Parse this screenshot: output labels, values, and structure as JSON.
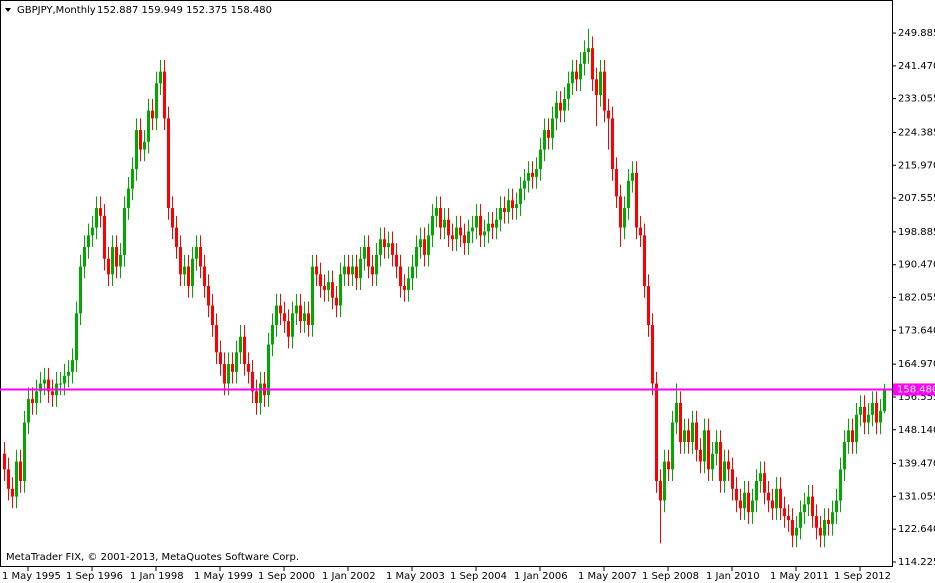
{
  "chart_data": {
    "type": "candlestick",
    "title": "GBPJPY,Monthly",
    "info_line": "152.887 159.949 152.375 158.480",
    "footer": "MetaTrader FIX, © 2001-2013, MetaQuotes Software Corp.",
    "up_color": "#00a800",
    "down_color": "#ff0000",
    "price_line": {
      "value": 158.48,
      "label": "158.480",
      "color": "#ff00ff"
    },
    "ylim": [
      113.2,
      258.36
    ],
    "yticks": [
      249.885,
      {
        "value": 241.47,
        "label": "241.470"
      },
      233.055,
      224.385,
      {
        "value": 215.97,
        "label": "215.970"
      },
      207.555,
      198.885,
      {
        "value": 190.47,
        "label": "190.470"
      },
      182.055,
      {
        "value": 173.64,
        "label": "173.640"
      },
      {
        "value": 164.97,
        "label": "164.970"
      },
      156.555,
      {
        "value": 148.14,
        "label": "148.140"
      },
      {
        "value": 139.47,
        "label": "139.470"
      },
      131.055,
      {
        "value": 122.64,
        "label": "122.640"
      },
      114.225
    ],
    "categories": [
      null,
      null,
      null,
      null,
      null,
      null,
      "1 May 1995",
      null,
      null,
      null,
      null,
      null,
      null,
      null,
      null,
      null,
      null,
      null,
      null,
      null,
      null,
      null,
      "1 Sep 1996",
      null,
      null,
      null,
      null,
      null,
      null,
      null,
      null,
      null,
      null,
      null,
      null,
      null,
      null,
      null,
      "1 Jan 1998",
      null,
      null,
      null,
      null,
      null,
      null,
      null,
      null,
      null,
      null,
      null,
      null,
      null,
      null,
      null,
      "1 May 1999",
      null,
      null,
      null,
      null,
      null,
      null,
      null,
      null,
      null,
      null,
      null,
      null,
      null,
      null,
      null,
      "1 Sep 2000",
      null,
      null,
      null,
      null,
      null,
      null,
      null,
      null,
      null,
      null,
      null,
      null,
      null,
      null,
      null,
      "1 Jan 2002",
      null,
      null,
      null,
      null,
      null,
      null,
      null,
      null,
      null,
      null,
      null,
      null,
      null,
      null,
      null,
      "1 May 2003",
      null,
      null,
      null,
      null,
      null,
      null,
      null,
      null,
      null,
      null,
      null,
      null,
      null,
      null,
      null,
      "1 Sep 2004",
      null,
      null,
      null,
      null,
      null,
      null,
      null,
      null,
      null,
      null,
      null,
      null,
      null,
      null,
      null,
      "1 Jan 2006",
      null,
      null,
      null,
      null,
      null,
      null,
      null,
      null,
      null,
      null,
      null,
      null,
      null,
      null,
      null,
      "1 May 2007",
      null,
      null,
      null,
      null,
      null,
      null,
      null,
      null,
      null,
      null,
      null,
      null,
      null,
      null,
      null,
      "1 Sep 2008",
      null,
      null,
      null,
      null,
      null,
      null,
      null,
      null,
      null,
      null,
      null,
      null,
      null,
      null,
      null,
      "1 Jan 2010",
      null,
      null,
      null,
      null,
      null,
      null,
      null,
      null,
      null,
      null,
      null,
      null,
      null,
      null,
      null,
      "1 May 2011",
      null,
      null,
      null,
      null,
      null,
      null,
      null,
      null,
      null,
      null,
      null,
      null,
      null,
      null,
      null,
      "1 Sep 2012",
      null,
      null,
      null,
      null,
      null,
      null
    ],
    "open": [
      142,
      138,
      133,
      131,
      140,
      135,
      150,
      156,
      155,
      158,
      160,
      161,
      158,
      157,
      160,
      160,
      162,
      163,
      166,
      178,
      190,
      195,
      198,
      200,
      205,
      203,
      192,
      188,
      195,
      190,
      193,
      205,
      210,
      215,
      225,
      220,
      222,
      230,
      228,
      237,
      240,
      228,
      205,
      200,
      195,
      188,
      190,
      185,
      192,
      195,
      190,
      185,
      180,
      175,
      168,
      165,
      160,
      165,
      163,
      168,
      172,
      165,
      163,
      158,
      155,
      160,
      157,
      170,
      175,
      180,
      178,
      176,
      172,
      178,
      180,
      176,
      178,
      175,
      190,
      188,
      185,
      184,
      186,
      182,
      180,
      188,
      190,
      188,
      190,
      187,
      192,
      195,
      190,
      188,
      193,
      197,
      195,
      196,
      193,
      190,
      185,
      184,
      187,
      190,
      195,
      197,
      193,
      198,
      203,
      205,
      200,
      202,
      198,
      197,
      200,
      198,
      196,
      199,
      200,
      203,
      198,
      199,
      201,
      200,
      202,
      205,
      204,
      207,
      205,
      206,
      210,
      212,
      214,
      213,
      215,
      220,
      225,
      223,
      228,
      232,
      230,
      233,
      237,
      240,
      238,
      242,
      245,
      246,
      238,
      234,
      240,
      230,
      228,
      215,
      208,
      200,
      205,
      212,
      214,
      200,
      198,
      185,
      175,
      160,
      135,
      130,
      140,
      138,
      150,
      155,
      145,
      148,
      145,
      150,
      143,
      140,
      148,
      138,
      142,
      145,
      135,
      140,
      138,
      133,
      130,
      128,
      132,
      127,
      130,
      135,
      137,
      132,
      130,
      128,
      133,
      128,
      126,
      125,
      121,
      123,
      127,
      129,
      131,
      126,
      123,
      121,
      125,
      124,
      127,
      130,
      138,
      145,
      148,
      145,
      152,
      154,
      150,
      152,
      155,
      150,
      152.887
    ],
    "high": [
      145,
      141,
      136,
      143,
      143,
      153,
      159,
      159,
      161,
      163,
      164,
      164,
      161,
      163,
      163,
      165,
      166,
      169,
      181,
      193,
      198,
      201,
      203,
      208,
      208,
      206,
      195,
      198,
      198,
      196,
      208,
      213,
      218,
      228,
      228,
      225,
      233,
      233,
      240,
      243,
      243,
      231,
      208,
      203,
      198,
      193,
      193,
      195,
      198,
      198,
      193,
      188,
      183,
      178,
      171,
      168,
      168,
      168,
      171,
      175,
      175,
      168,
      166,
      161,
      163,
      163,
      173,
      178,
      183,
      183,
      181,
      179,
      181,
      183,
      183,
      181,
      181,
      193,
      193,
      191,
      188,
      189,
      189,
      185,
      191,
      193,
      193,
      193,
      193,
      195,
      198,
      198,
      193,
      196,
      200,
      200,
      199,
      199,
      196,
      193,
      188,
      190,
      193,
      198,
      200,
      200,
      201,
      206,
      208,
      208,
      205,
      205,
      201,
      203,
      203,
      201,
      202,
      203,
      206,
      206,
      202,
      204,
      204,
      205,
      208,
      208,
      210,
      210,
      209,
      213,
      215,
      217,
      217,
      218,
      223,
      228,
      228,
      231,
      235,
      235,
      236,
      240,
      243,
      243,
      245,
      248,
      251,
      249,
      241,
      243,
      243,
      233,
      231,
      218,
      211,
      208,
      215,
      217,
      217,
      203,
      201,
      188,
      178,
      163,
      138,
      143,
      143,
      153,
      160,
      158,
      151,
      151,
      153,
      153,
      146,
      151,
      151,
      145,
      148,
      148,
      143,
      143,
      141,
      136,
      133,
      135,
      135,
      133,
      138,
      140,
      140,
      135,
      133,
      136,
      136,
      131,
      129,
      128,
      126,
      130,
      132,
      134,
      134,
      129,
      126,
      128,
      128,
      130,
      133,
      141,
      148,
      151,
      151,
      155,
      157,
      157,
      155,
      158,
      158,
      156,
      159.949
    ],
    "low": [
      135,
      130,
      128,
      128,
      132,
      132,
      147,
      152,
      152,
      155,
      157,
      155,
      154,
      154,
      157,
      157,
      159,
      160,
      163,
      175,
      187,
      192,
      195,
      197,
      200,
      189,
      185,
      185,
      187,
      187,
      190,
      202,
      207,
      212,
      217,
      217,
      219,
      225,
      225,
      234,
      225,
      202,
      197,
      192,
      185,
      185,
      182,
      182,
      189,
      187,
      182,
      177,
      172,
      165,
      162,
      157,
      157,
      160,
      160,
      165,
      162,
      160,
      155,
      152,
      152,
      154,
      154,
      167,
      172,
      175,
      173,
      169,
      169,
      175,
      173,
      173,
      172,
      172,
      185,
      182,
      181,
      181,
      179,
      177,
      177,
      185,
      185,
      185,
      184,
      184,
      189,
      187,
      185,
      185,
      190,
      192,
      192,
      190,
      187,
      182,
      181,
      181,
      184,
      187,
      192,
      190,
      190,
      195,
      200,
      197,
      197,
      195,
      194,
      194,
      195,
      193,
      193,
      196,
      197,
      195,
      195,
      196,
      197,
      197,
      199,
      201,
      201,
      202,
      202,
      203,
      207,
      209,
      210,
      210,
      212,
      217,
      220,
      220,
      225,
      227,
      227,
      230,
      234,
      235,
      235,
      239,
      242,
      235,
      226,
      231,
      227,
      220,
      212,
      205,
      195,
      197,
      202,
      209,
      197,
      195,
      182,
      172,
      157,
      132,
      119,
      127,
      135,
      135,
      147,
      142,
      142,
      142,
      142,
      140,
      137,
      137,
      135,
      135,
      139,
      132,
      132,
      135,
      130,
      127,
      125,
      125,
      124,
      124,
      127,
      132,
      129,
      127,
      125,
      125,
      125,
      123,
      122,
      118,
      118,
      120,
      124,
      126,
      123,
      120,
      118,
      118,
      121,
      121,
      124,
      127,
      135,
      142,
      142,
      142,
      149,
      147,
      147,
      149,
      147,
      147,
      152.375
    ],
    "close": [
      138,
      133,
      131,
      140,
      135,
      150,
      156,
      155,
      158,
      160,
      161,
      158,
      157,
      160,
      160,
      162,
      163,
      166,
      178,
      190,
      195,
      198,
      200,
      205,
      203,
      192,
      188,
      195,
      190,
      193,
      205,
      210,
      215,
      225,
      220,
      222,
      230,
      228,
      237,
      240,
      228,
      205,
      200,
      195,
      188,
      190,
      185,
      192,
      195,
      190,
      185,
      180,
      175,
      168,
      165,
      160,
      165,
      163,
      168,
      172,
      165,
      163,
      158,
      155,
      160,
      157,
      170,
      175,
      180,
      178,
      176,
      172,
      178,
      180,
      176,
      178,
      175,
      190,
      188,
      185,
      184,
      186,
      182,
      180,
      188,
      190,
      188,
      190,
      187,
      192,
      195,
      190,
      188,
      193,
      197,
      195,
      196,
      193,
      190,
      185,
      184,
      187,
      190,
      195,
      197,
      193,
      198,
      203,
      205,
      200,
      202,
      198,
      197,
      200,
      198,
      196,
      199,
      200,
      203,
      198,
      199,
      201,
      200,
      202,
      205,
      204,
      207,
      205,
      206,
      210,
      212,
      214,
      213,
      215,
      220,
      225,
      223,
      228,
      232,
      230,
      233,
      237,
      240,
      238,
      242,
      245,
      246,
      238,
      234,
      240,
      230,
      228,
      215,
      208,
      200,
      205,
      212,
      214,
      200,
      198,
      185,
      175,
      160,
      135,
      130,
      140,
      138,
      150,
      155,
      145,
      148,
      145,
      150,
      143,
      140,
      148,
      138,
      142,
      145,
      135,
      140,
      138,
      133,
      130,
      128,
      132,
      127,
      130,
      135,
      137,
      132,
      130,
      128,
      133,
      128,
      126,
      125,
      121,
      123,
      127,
      129,
      131,
      126,
      123,
      121,
      125,
      124,
      127,
      130,
      138,
      145,
      148,
      145,
      152,
      154,
      150,
      152,
      155,
      150,
      153,
      158.48
    ]
  }
}
